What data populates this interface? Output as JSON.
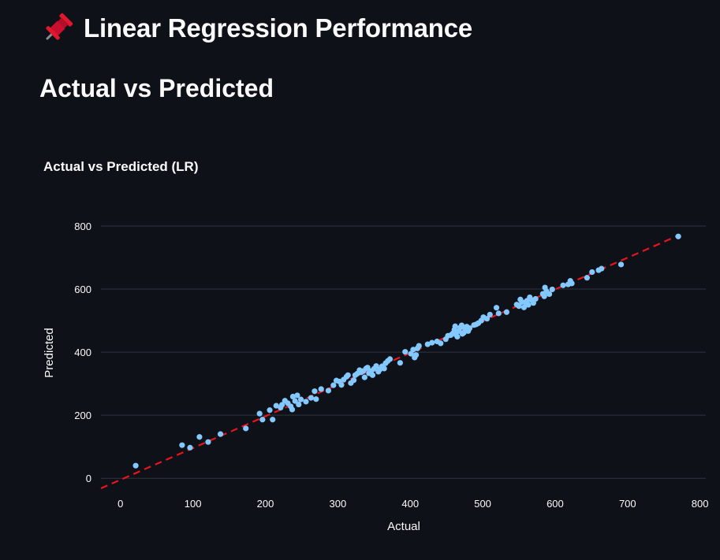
{
  "page": {
    "title": "Linear Regression Performance",
    "title_icon": "pushpin-icon"
  },
  "section": {
    "heading": "Actual vs Predicted"
  },
  "colors": {
    "background": "#0e1117",
    "text": "#fafafa",
    "point": "#83c9ff",
    "reference_line": "#e8141e",
    "grid": "#31333f"
  },
  "chart_data": {
    "type": "scatter",
    "title": "Actual vs Predicted (LR)",
    "xlabel": "Actual",
    "ylabel": "Predicted",
    "xlim": [
      -27,
      808
    ],
    "ylim": [
      -32,
      835
    ],
    "xticks": [
      0,
      100,
      200,
      300,
      400,
      500,
      600,
      700,
      800
    ],
    "yticks": [
      0,
      200,
      400,
      600,
      800
    ],
    "grid": "horizontal",
    "reference_line": {
      "style": "dashed",
      "x": [
        -27,
        770
      ],
      "y": [
        -32,
        770
      ]
    },
    "points": [
      [
        21,
        40
      ],
      [
        85,
        105
      ],
      [
        96,
        97
      ],
      [
        109,
        131
      ],
      [
        121,
        115
      ],
      [
        138,
        140
      ],
      [
        173,
        158
      ],
      [
        192,
        205
      ],
      [
        196,
        186
      ],
      [
        206,
        216
      ],
      [
        210,
        186
      ],
      [
        215,
        230
      ],
      [
        221,
        224
      ],
      [
        223,
        233
      ],
      [
        227,
        246
      ],
      [
        231,
        238
      ],
      [
        235,
        228
      ],
      [
        237,
        218
      ],
      [
        238,
        259
      ],
      [
        241,
        245
      ],
      [
        244,
        263
      ],
      [
        246,
        234
      ],
      [
        249,
        250
      ],
      [
        256,
        243
      ],
      [
        263,
        255
      ],
      [
        268,
        276
      ],
      [
        270,
        251
      ],
      [
        277,
        283
      ],
      [
        287,
        278
      ],
      [
        294,
        295
      ],
      [
        298,
        310
      ],
      [
        302,
        307
      ],
      [
        305,
        296
      ],
      [
        308,
        313
      ],
      [
        312,
        322
      ],
      [
        314,
        327
      ],
      [
        318,
        302
      ],
      [
        322,
        311
      ],
      [
        324,
        327
      ],
      [
        327,
        332
      ],
      [
        330,
        343
      ],
      [
        332,
        336
      ],
      [
        335,
        340
      ],
      [
        337,
        320
      ],
      [
        339,
        348
      ],
      [
        341,
        351
      ],
      [
        343,
        333
      ],
      [
        346,
        340
      ],
      [
        348,
        327
      ],
      [
        350,
        347
      ],
      [
        353,
        356
      ],
      [
        356,
        338
      ],
      [
        358,
        345
      ],
      [
        361,
        355
      ],
      [
        364,
        348
      ],
      [
        366,
        365
      ],
      [
        369,
        372
      ],
      [
        372,
        378
      ],
      [
        386,
        366
      ],
      [
        393,
        401
      ],
      [
        401,
        395
      ],
      [
        404,
        408
      ],
      [
        406,
        383
      ],
      [
        408,
        391
      ],
      [
        410,
        412
      ],
      [
        412,
        420
      ],
      [
        424,
        425
      ],
      [
        430,
        430
      ],
      [
        437,
        434
      ],
      [
        442,
        428
      ],
      [
        449,
        441
      ],
      [
        452,
        452
      ],
      [
        456,
        454
      ],
      [
        459,
        460
      ],
      [
        461,
        471
      ],
      [
        462,
        482
      ],
      [
        463,
        456
      ],
      [
        465,
        449
      ],
      [
        467,
        467
      ],
      [
        469,
        478
      ],
      [
        471,
        485
      ],
      [
        472,
        458
      ],
      [
        474,
        462
      ],
      [
        476,
        474
      ],
      [
        478,
        481
      ],
      [
        480,
        467
      ],
      [
        482,
        476
      ],
      [
        488,
        486
      ],
      [
        491,
        488
      ],
      [
        494,
        492
      ],
      [
        498,
        500
      ],
      [
        501,
        511
      ],
      [
        506,
        506
      ],
      [
        510,
        519
      ],
      [
        519,
        541
      ],
      [
        522,
        523
      ],
      [
        533,
        527
      ],
      [
        547,
        551
      ],
      [
        550,
        546
      ],
      [
        552,
        567
      ],
      [
        554,
        559
      ],
      [
        557,
        542
      ],
      [
        559,
        558
      ],
      [
        561,
        563
      ],
      [
        563,
        550
      ],
      [
        565,
        574
      ],
      [
        567,
        566
      ],
      [
        570,
        556
      ],
      [
        573,
        569
      ],
      [
        583,
        585
      ],
      [
        585,
        577
      ],
      [
        586,
        605
      ],
      [
        588,
        593
      ],
      [
        592,
        584
      ],
      [
        596,
        599
      ],
      [
        611,
        612
      ],
      [
        618,
        615
      ],
      [
        621,
        626
      ],
      [
        623,
        618
      ],
      [
        644,
        636
      ],
      [
        651,
        654
      ],
      [
        660,
        660
      ],
      [
        664,
        665
      ],
      [
        691,
        678
      ],
      [
        770,
        767
      ]
    ]
  }
}
